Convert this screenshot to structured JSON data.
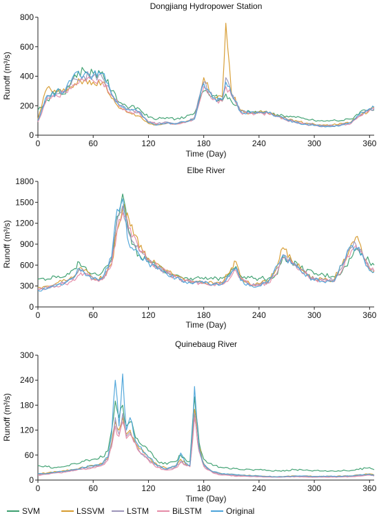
{
  "chart_data": [
    {
      "type": "line",
      "title": "Dongjiang Hydropower Station",
      "xlabel": "Time (Day)",
      "ylabel": "Runoff (m³/s)",
      "xlim": [
        0,
        365
      ],
      "ylim": [
        0,
        800
      ],
      "xticks": [
        0,
        60,
        120,
        180,
        240,
        300,
        360
      ],
      "yticks": [
        0,
        200,
        400,
        600,
        800
      ],
      "x": [
        0,
        10,
        20,
        30,
        40,
        50,
        60,
        70,
        80,
        90,
        100,
        110,
        120,
        130,
        140,
        150,
        160,
        170,
        180,
        190,
        200,
        204,
        210,
        220,
        230,
        240,
        250,
        260,
        270,
        280,
        290,
        300,
        310,
        320,
        330,
        340,
        350,
        360,
        365
      ],
      "series": [
        {
          "name": "SVM",
          "values": [
            170,
            240,
            300,
            280,
            410,
            440,
            420,
            430,
            300,
            220,
            190,
            180,
            120,
            110,
            120,
            110,
            120,
            150,
            300,
            270,
            230,
            280,
            230,
            170,
            160,
            160,
            150,
            140,
            130,
            120,
            110,
            100,
            95,
            100,
            100,
            110,
            160,
            180,
            170
          ]
        },
        {
          "name": "LSSVM",
          "values": [
            110,
            320,
            290,
            300,
            350,
            370,
            360,
            360,
            250,
            180,
            150,
            130,
            80,
            70,
            80,
            80,
            90,
            120,
            390,
            250,
            260,
            760,
            290,
            170,
            150,
            160,
            150,
            130,
            110,
            100,
            80,
            75,
            70,
            70,
            80,
            90,
            130,
            170,
            190
          ]
        },
        {
          "name": "LSTM",
          "values": [
            100,
            260,
            280,
            300,
            380,
            400,
            400,
            390,
            270,
            200,
            170,
            160,
            90,
            80,
            90,
            80,
            90,
            120,
            360,
            250,
            240,
            390,
            280,
            160,
            150,
            150,
            150,
            130,
            110,
            90,
            80,
            70,
            65,
            65,
            75,
            85,
            140,
            175,
            180
          ]
        },
        {
          "name": "BiLSTM",
          "values": [
            90,
            250,
            270,
            290,
            340,
            370,
            370,
            360,
            270,
            190,
            160,
            150,
            90,
            75,
            80,
            75,
            85,
            110,
            330,
            240,
            230,
            330,
            270,
            155,
            145,
            150,
            145,
            125,
            100,
            85,
            75,
            65,
            60,
            60,
            70,
            80,
            130,
            170,
            185
          ]
        },
        {
          "name": "Original",
          "values": [
            100,
            270,
            290,
            310,
            420,
            410,
            410,
            420,
            280,
            200,
            170,
            160,
            85,
            70,
            85,
            75,
            90,
            110,
            350,
            250,
            240,
            360,
            280,
            160,
            150,
            155,
            150,
            130,
            105,
            85,
            75,
            65,
            60,
            60,
            70,
            85,
            150,
            180,
            190
          ]
        }
      ]
    },
    {
      "type": "line",
      "title": "Elbe River",
      "xlabel": "Time (Day)",
      "ylabel": "Runoff (m³/s)",
      "xlim": [
        0,
        365
      ],
      "ylim": [
        0,
        1800
      ],
      "xticks": [
        0,
        60,
        120,
        180,
        240,
        300,
        360
      ],
      "yticks": [
        0,
        300,
        600,
        900,
        1200,
        1500,
        1800
      ],
      "x": [
        0,
        10,
        20,
        30,
        40,
        45,
        50,
        60,
        70,
        80,
        86,
        92,
        97,
        102,
        110,
        120,
        130,
        140,
        150,
        160,
        170,
        180,
        190,
        200,
        210,
        215,
        220,
        230,
        240,
        250,
        260,
        266,
        275,
        285,
        300,
        320,
        330,
        340,
        345,
        352,
        360,
        365
      ],
      "series": [
        {
          "name": "SVM",
          "values": [
            400,
            400,
            420,
            440,
            550,
            640,
            580,
            480,
            500,
            700,
            1300,
            1620,
            1200,
            900,
            750,
            650,
            560,
            510,
            460,
            420,
            410,
            400,
            400,
            410,
            540,
            580,
            450,
            420,
            410,
            410,
            470,
            720,
            660,
            560,
            470,
            440,
            500,
            700,
            820,
            780,
            640,
            600
          ]
        },
        {
          "name": "LSSVM",
          "values": [
            280,
            300,
            340,
            380,
            450,
            560,
            520,
            420,
            410,
            620,
            1100,
            1400,
            1350,
            1180,
            850,
            700,
            620,
            530,
            450,
            380,
            360,
            350,
            340,
            350,
            560,
            650,
            420,
            330,
            330,
            380,
            600,
            850,
            680,
            560,
            400,
            380,
            600,
            900,
            1000,
            780,
            550,
            520
          ]
        },
        {
          "name": "LSTM",
          "values": [
            260,
            280,
            320,
            360,
            440,
            540,
            500,
            410,
            400,
            650,
            1250,
            1450,
            1150,
            950,
            800,
            660,
            560,
            480,
            420,
            370,
            360,
            350,
            330,
            340,
            480,
            560,
            400,
            320,
            320,
            360,
            560,
            750,
            640,
            540,
            400,
            380,
            560,
            850,
            900,
            780,
            560,
            520
          ]
        },
        {
          "name": "BiLSTM",
          "values": [
            260,
            270,
            300,
            330,
            380,
            460,
            480,
            400,
            390,
            600,
            1100,
            1350,
            1250,
            1000,
            820,
            680,
            570,
            490,
            420,
            370,
            350,
            340,
            320,
            320,
            440,
            520,
            420,
            320,
            310,
            340,
            500,
            700,
            650,
            540,
            390,
            360,
            520,
            800,
            880,
            780,
            560,
            510
          ]
        },
        {
          "name": "Original",
          "values": [
            240,
            260,
            300,
            350,
            430,
            550,
            500,
            400,
            420,
            720,
            1400,
            1550,
            1000,
            850,
            750,
            640,
            540,
            470,
            410,
            360,
            350,
            340,
            320,
            330,
            500,
            560,
            380,
            300,
            300,
            350,
            600,
            740,
            620,
            520,
            380,
            360,
            600,
            880,
            850,
            760,
            520,
            500
          ]
        }
      ]
    },
    {
      "type": "line",
      "title": "Quinebaug River",
      "xlabel": "Time (Day)",
      "ylabel": "Runoff (m³/s)",
      "xlim": [
        0,
        365
      ],
      "ylim": [
        0,
        300
      ],
      "xticks": [
        0,
        60,
        120,
        180,
        240,
        300,
        360
      ],
      "yticks": [
        0,
        60,
        120,
        180,
        240,
        300
      ],
      "x": [
        0,
        10,
        20,
        30,
        40,
        50,
        60,
        70,
        76,
        80,
        84,
        88,
        92,
        96,
        100,
        104,
        110,
        120,
        130,
        140,
        150,
        155,
        160,
        165,
        168,
        170,
        175,
        180,
        190,
        200,
        220,
        240,
        260,
        280,
        300,
        320,
        340,
        360,
        365
      ],
      "series": [
        {
          "name": "SVM",
          "values": [
            35,
            32,
            30,
            33,
            40,
            45,
            50,
            55,
            70,
            120,
            190,
            150,
            180,
            130,
            140,
            120,
            90,
            70,
            45,
            38,
            45,
            60,
            50,
            45,
            140,
            200,
            90,
            50,
            35,
            30,
            25,
            25,
            22,
            25,
            23,
            22,
            23,
            30,
            25
          ]
        },
        {
          "name": "LSSVM",
          "values": [
            15,
            17,
            20,
            22,
            26,
            30,
            35,
            40,
            55,
            90,
            140,
            120,
            150,
            110,
            120,
            100,
            75,
            55,
            35,
            28,
            35,
            50,
            40,
            35,
            110,
            170,
            80,
            40,
            20,
            15,
            12,
            10,
            8,
            10,
            9,
            9,
            10,
            15,
            12
          ]
        },
        {
          "name": "LSTM",
          "values": [
            13,
            15,
            18,
            20,
            24,
            28,
            32,
            38,
            50,
            85,
            150,
            110,
            160,
            105,
            115,
            95,
            70,
            50,
            32,
            25,
            32,
            45,
            38,
            33,
            100,
            160,
            70,
            35,
            18,
            13,
            10,
            9,
            7,
            9,
            8,
            8,
            9,
            13,
            10
          ]
        },
        {
          "name": "BiLSTM",
          "values": [
            12,
            14,
            17,
            19,
            23,
            27,
            30,
            36,
            48,
            80,
            130,
            105,
            140,
            100,
            110,
            92,
            68,
            48,
            30,
            24,
            30,
            42,
            36,
            32,
            95,
            150,
            68,
            33,
            17,
            12,
            9,
            8,
            7,
            8,
            7,
            7,
            8,
            12,
            10
          ]
        },
        {
          "name": "Original",
          "values": [
            15,
            16,
            19,
            22,
            25,
            30,
            34,
            40,
            55,
            110,
            240,
            130,
            255,
            120,
            150,
            110,
            80,
            55,
            35,
            27,
            35,
            65,
            42,
            35,
            130,
            225,
            75,
            38,
            20,
            15,
            12,
            10,
            8,
            10,
            9,
            9,
            10,
            14,
            12
          ]
        }
      ]
    }
  ],
  "legend": [
    {
      "name": "SVM",
      "color": "#3a9e6e"
    },
    {
      "name": "LSSVM",
      "color": "#d69a2d"
    },
    {
      "name": "LSTM",
      "color": "#9b93b8"
    },
    {
      "name": "BiLSTM",
      "color": "#e58aa6"
    },
    {
      "name": "Original",
      "color": "#4ba3d9"
    }
  ]
}
